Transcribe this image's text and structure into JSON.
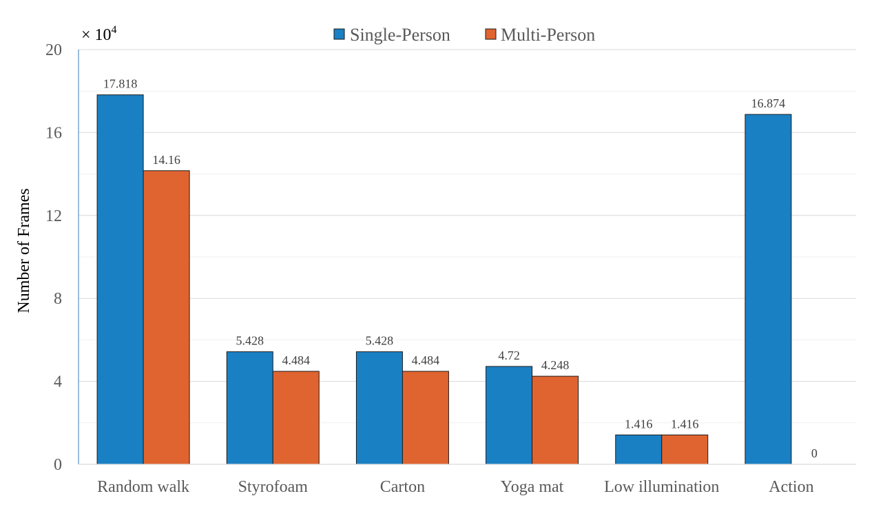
{
  "chart_data": {
    "type": "bar",
    "title": "",
    "ylabel": "Number of Frames",
    "xlabel": "",
    "multiplier_label": "× 10",
    "multiplier_exponent": "4",
    "ylim": [
      0,
      20
    ],
    "yticks": [
      0,
      4,
      8,
      12,
      16,
      20
    ],
    "minor_grid_step": 2,
    "grid": true,
    "legend_position": "top-center",
    "categories": [
      "Random walk",
      "Styrofoam",
      "Carton",
      "Yoga mat",
      "Low illumination",
      "Action"
    ],
    "series": [
      {
        "name": "Single-Person",
        "color": "#1a80c4",
        "values": [
          17.818,
          5.428,
          5.428,
          4.72,
          1.416,
          16.874
        ],
        "labels": [
          "17.818",
          "5.428",
          "5.428",
          "4.72",
          "1.416",
          "16.874"
        ]
      },
      {
        "name": "Multi-Person",
        "color": "#e06430",
        "values": [
          14.16,
          4.484,
          4.484,
          4.248,
          1.416,
          0
        ],
        "labels": [
          "14.16",
          "4.484",
          "4.484",
          "4.248",
          "1.416",
          "0"
        ]
      }
    ]
  }
}
